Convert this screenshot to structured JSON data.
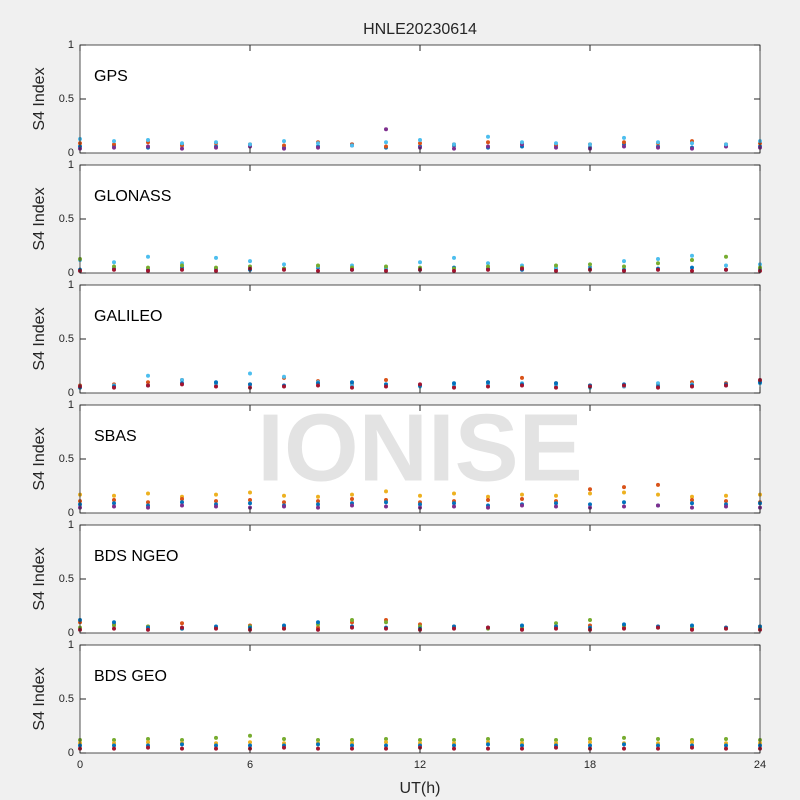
{
  "chart_data": [
    {
      "type": "scatter",
      "title": "HNLE20230614",
      "label": "GPS",
      "ylabel": "S4 Index",
      "xlim": [
        0,
        24
      ],
      "xticks": [
        0,
        6,
        12,
        18,
        24
      ],
      "ylim": [
        0,
        1
      ],
      "yticks": [
        0,
        0.5,
        1
      ],
      "x": [
        0,
        1.2,
        2.4,
        3.6,
        4.8,
        6,
        7.2,
        8.4,
        9.6,
        10.8,
        12,
        13.2,
        14.4,
        15.6,
        16.8,
        18,
        19.2,
        20.4,
        21.6,
        22.8,
        24
      ],
      "series": [
        {
          "color": "#0072BD",
          "values": [
            0.06,
            0.07,
            0.05,
            0.08,
            0.06,
            0.07,
            0.05,
            0.06,
            0.08,
            0.05,
            0.06,
            0.07,
            0.05,
            0.06,
            0.07,
            0.05,
            0.08,
            0.06,
            0.05,
            0.07,
            0.06
          ]
        },
        {
          "color": "#D95319",
          "values": [
            0.09,
            0.08,
            0.1,
            0.07,
            0.09,
            0.08,
            0.07,
            0.1,
            0.08,
            0.06,
            0.09,
            0.08,
            0.1,
            0.09,
            0.07,
            0.08,
            0.1,
            0.09,
            0.11,
            0.08,
            0.09
          ]
        },
        {
          "color": "#7E2F8E",
          "values": [
            0.04,
            0.05,
            0.06,
            0.04,
            0.05,
            0.06,
            0.04,
            0.05,
            0.07,
            0.22,
            0.05,
            0.04,
            0.06,
            0.08,
            0.05,
            0.04,
            0.06,
            0.05,
            0.04,
            0.06,
            0.05
          ]
        },
        {
          "color": "#4DBEEE",
          "values": [
            0.13,
            0.11,
            0.12,
            0.09,
            0.1,
            0.08,
            0.11,
            0.09,
            0.07,
            0.1,
            0.12,
            0.08,
            0.15,
            0.1,
            0.09,
            0.08,
            0.14,
            0.1,
            0.09,
            0.08,
            0.11
          ]
        }
      ]
    },
    {
      "type": "scatter",
      "label": "GLONASS",
      "ylabel": "S4 Index",
      "xlim": [
        0,
        24
      ],
      "xticks": [
        0,
        6,
        12,
        18,
        24
      ],
      "ylim": [
        0,
        1
      ],
      "yticks": [
        0,
        0.5,
        1
      ],
      "x": [
        0,
        1.2,
        2.4,
        3.6,
        4.8,
        6,
        7.2,
        8.4,
        9.6,
        10.8,
        12,
        13.2,
        14.4,
        15.6,
        16.8,
        18,
        19.2,
        20.4,
        21.6,
        22.8,
        24
      ],
      "series": [
        {
          "color": "#0072BD",
          "values": [
            0.03,
            0.04,
            0.03,
            0.05,
            0.04,
            0.03,
            0.04,
            0.05,
            0.03,
            0.04,
            0.03,
            0.05,
            0.04,
            0.03,
            0.04,
            0.05,
            0.03,
            0.04,
            0.05,
            0.03,
            0.04
          ]
        },
        {
          "color": "#4DBEEE",
          "values": [
            0.12,
            0.1,
            0.15,
            0.09,
            0.14,
            0.11,
            0.08,
            0.06,
            0.07,
            0.05,
            0.1,
            0.14,
            0.09,
            0.07,
            0.05,
            0.04,
            0.11,
            0.13,
            0.16,
            0.07,
            0.08
          ]
        },
        {
          "color": "#77AC30",
          "values": [
            0.13,
            0.06,
            0.05,
            0.07,
            0.05,
            0.06,
            0.04,
            0.07,
            0.05,
            0.06,
            0.05,
            0.04,
            0.06,
            0.05,
            0.07,
            0.08,
            0.06,
            0.09,
            0.12,
            0.15,
            0.05
          ]
        },
        {
          "color": "#A2142F",
          "values": [
            0.02,
            0.03,
            0.02,
            0.03,
            0.02,
            0.04,
            0.03,
            0.02,
            0.03,
            0.02,
            0.03,
            0.02,
            0.03,
            0.04,
            0.02,
            0.03,
            0.02,
            0.03,
            0.02,
            0.03,
            0.02
          ]
        }
      ]
    },
    {
      "type": "scatter",
      "label": "GALILEO",
      "ylabel": "S4 Index",
      "xlim": [
        0,
        24
      ],
      "xticks": [
        0,
        6,
        12,
        18,
        24
      ],
      "ylim": [
        0,
        1
      ],
      "yticks": [
        0,
        0.5,
        1
      ],
      "x": [
        0,
        1.2,
        2.4,
        3.6,
        4.8,
        6,
        7.2,
        8.4,
        9.6,
        10.8,
        12,
        13.2,
        14.4,
        15.6,
        16.8,
        18,
        19.2,
        20.4,
        21.6,
        22.8,
        24
      ],
      "series": [
        {
          "color": "#D95319",
          "values": [
            0.07,
            0.08,
            0.1,
            0.12,
            0.09,
            0.08,
            0.14,
            0.11,
            0.08,
            0.12,
            0.07,
            0.06,
            0.1,
            0.14,
            0.09,
            0.07,
            0.06,
            0.08,
            0.1,
            0.09,
            0.11
          ]
        },
        {
          "color": "#4DBEEE",
          "values": [
            0.06,
            0.07,
            0.16,
            0.12,
            0.08,
            0.18,
            0.15,
            0.1,
            0.07,
            0.08,
            0.06,
            0.07,
            0.08,
            0.09,
            0.07,
            0.05,
            0.06,
            0.09,
            0.08,
            0.07,
            0.09
          ]
        },
        {
          "color": "#0072BD",
          "values": [
            0.05,
            0.06,
            0.07,
            0.09,
            0.1,
            0.08,
            0.07,
            0.09,
            0.1,
            0.08,
            0.07,
            0.09,
            0.1,
            0.08,
            0.09,
            0.07,
            0.08,
            0.06,
            0.07,
            0.08,
            0.1
          ]
        },
        {
          "color": "#A2142F",
          "values": [
            0.06,
            0.05,
            0.07,
            0.08,
            0.06,
            0.05,
            0.06,
            0.07,
            0.05,
            0.06,
            0.08,
            0.05,
            0.06,
            0.07,
            0.05,
            0.06,
            0.07,
            0.05,
            0.06,
            0.07,
            0.12
          ]
        }
      ]
    },
    {
      "type": "scatter",
      "label": "SBAS",
      "watermark": "IONISE",
      "ylabel": "S4 Index",
      "xlim": [
        0,
        24
      ],
      "xticks": [
        0,
        6,
        12,
        18,
        24
      ],
      "ylim": [
        0,
        1
      ],
      "yticks": [
        0,
        0.5,
        1
      ],
      "x": [
        0,
        1.2,
        2.4,
        3.6,
        4.8,
        6,
        7.2,
        8.4,
        9.6,
        10.8,
        12,
        13.2,
        14.4,
        15.6,
        16.8,
        18,
        19.2,
        20.4,
        21.6,
        22.8,
        24
      ],
      "series": [
        {
          "color": "#EDB120",
          "values": [
            0.17,
            0.16,
            0.18,
            0.15,
            0.17,
            0.19,
            0.16,
            0.15,
            0.17,
            0.2,
            0.16,
            0.18,
            0.15,
            0.17,
            0.16,
            0.18,
            0.19,
            0.17,
            0.15,
            0.16,
            0.17
          ]
        },
        {
          "color": "#D95319",
          "values": [
            0.11,
            0.12,
            0.1,
            0.13,
            0.11,
            0.12,
            0.1,
            0.11,
            0.13,
            0.12,
            0.1,
            0.11,
            0.12,
            0.13,
            0.11,
            0.22,
            0.24,
            0.26,
            0.12,
            0.11,
            0.1
          ]
        },
        {
          "color": "#0072BD",
          "values": [
            0.08,
            0.09,
            0.07,
            0.1,
            0.08,
            0.09,
            0.07,
            0.08,
            0.09,
            0.1,
            0.08,
            0.09,
            0.07,
            0.08,
            0.09,
            0.08,
            0.1,
            0.07,
            0.09,
            0.08,
            0.09
          ]
        },
        {
          "color": "#7E2F8E",
          "values": [
            0.05,
            0.06,
            0.05,
            0.07,
            0.06,
            0.05,
            0.06,
            0.05,
            0.07,
            0.06,
            0.05,
            0.06,
            0.05,
            0.07,
            0.06,
            0.05,
            0.06,
            0.07,
            0.05,
            0.06,
            0.05
          ]
        }
      ]
    },
    {
      "type": "scatter",
      "label": "BDS NGEO",
      "ylabel": "S4 Index",
      "xlim": [
        0,
        24
      ],
      "xticks": [
        0,
        6,
        12,
        18,
        24
      ],
      "ylim": [
        0,
        1
      ],
      "yticks": [
        0,
        0.5,
        1
      ],
      "x": [
        0,
        1.2,
        2.4,
        3.6,
        4.8,
        6,
        7.2,
        8.4,
        9.6,
        10.8,
        12,
        13.2,
        14.4,
        15.6,
        16.8,
        18,
        19.2,
        20.4,
        21.6,
        22.8,
        24
      ],
      "series": [
        {
          "color": "#D95319",
          "values": [
            0.1,
            0.08,
            0.06,
            0.09,
            0.05,
            0.07,
            0.06,
            0.05,
            0.1,
            0.12,
            0.08,
            0.06,
            0.05,
            0.04,
            0.06,
            0.07,
            0.05,
            0.06,
            0.04,
            0.05,
            0.06
          ]
        },
        {
          "color": "#77AC30",
          "values": [
            0.05,
            0.07,
            0.06,
            0.04,
            0.05,
            0.06,
            0.04,
            0.08,
            0.12,
            0.1,
            0.06,
            0.05,
            0.04,
            0.06,
            0.09,
            0.12,
            0.07,
            0.05,
            0.06,
            0.04,
            0.05
          ]
        },
        {
          "color": "#0072BD",
          "values": [
            0.12,
            0.1,
            0.05,
            0.04,
            0.06,
            0.05,
            0.07,
            0.1,
            0.06,
            0.05,
            0.04,
            0.06,
            0.05,
            0.07,
            0.06,
            0.05,
            0.08,
            0.06,
            0.07,
            0.05,
            0.06
          ]
        },
        {
          "color": "#A2142F",
          "values": [
            0.03,
            0.04,
            0.03,
            0.05,
            0.04,
            0.03,
            0.04,
            0.03,
            0.05,
            0.04,
            0.03,
            0.04,
            0.05,
            0.03,
            0.04,
            0.03,
            0.04,
            0.05,
            0.03,
            0.04,
            0.03
          ]
        }
      ]
    },
    {
      "type": "scatter",
      "label": "BDS GEO",
      "ylabel": "S4 Index",
      "xlabel": "UT(h)",
      "xlim": [
        0,
        24
      ],
      "xticks": [
        0,
        6,
        12,
        18,
        24
      ],
      "ylim": [
        0,
        1
      ],
      "yticks": [
        0,
        0.5,
        1
      ],
      "x": [
        0,
        1.2,
        2.4,
        3.6,
        4.8,
        6,
        7.2,
        8.4,
        9.6,
        10.8,
        12,
        13.2,
        14.4,
        15.6,
        16.8,
        18,
        19.2,
        20.4,
        21.6,
        22.8,
        24
      ],
      "series": [
        {
          "color": "#77AC30",
          "values": [
            0.12,
            0.12,
            0.13,
            0.12,
            0.14,
            0.16,
            0.13,
            0.12,
            0.12,
            0.13,
            0.12,
            0.12,
            0.13,
            0.12,
            0.12,
            0.13,
            0.14,
            0.13,
            0.12,
            0.13,
            0.12
          ]
        },
        {
          "color": "#EDB120",
          "values": [
            0.09,
            0.09,
            0.1,
            0.09,
            0.09,
            0.1,
            0.09,
            0.09,
            0.09,
            0.1,
            0.09,
            0.09,
            0.1,
            0.09,
            0.09,
            0.1,
            0.09,
            0.09,
            0.1,
            0.09,
            0.09
          ]
        },
        {
          "color": "#0072BD",
          "values": [
            0.07,
            0.07,
            0.07,
            0.08,
            0.07,
            0.07,
            0.07,
            0.08,
            0.07,
            0.07,
            0.07,
            0.07,
            0.08,
            0.07,
            0.07,
            0.07,
            0.08,
            0.07,
            0.07,
            0.07,
            0.07
          ]
        },
        {
          "color": "#A2142F",
          "values": [
            0.04,
            0.04,
            0.05,
            0.04,
            0.04,
            0.04,
            0.05,
            0.04,
            0.04,
            0.04,
            0.05,
            0.04,
            0.04,
            0.04,
            0.05,
            0.04,
            0.04,
            0.04,
            0.05,
            0.04,
            0.04
          ]
        }
      ]
    }
  ]
}
